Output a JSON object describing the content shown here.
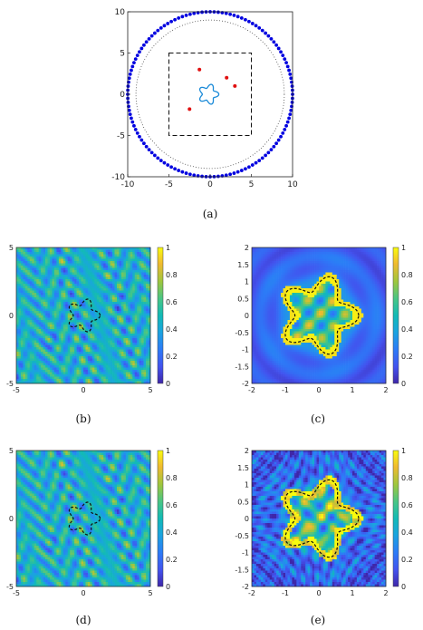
{
  "captions": [
    "(a)",
    "(b)",
    "(c)",
    "(d)",
    "(e)"
  ],
  "chart_data": [
    {
      "type": "scatter",
      "panel": "a",
      "xlim": [
        -10,
        10
      ],
      "ylim": [
        -10,
        10
      ],
      "xticks": [
        "-10",
        "-5",
        "0",
        "5",
        "10"
      ],
      "yticks": [
        "10",
        "5",
        "0",
        "-5",
        "-10"
      ],
      "grid": false,
      "circle_points": {
        "radius": 10,
        "count": 128,
        "color": "#0000e0"
      },
      "dotted_circle": {
        "radius": 9
      },
      "dashed_square": {
        "half_width": 5
      },
      "red_points": [
        {
          "x": -1.3,
          "y": 3.0
        },
        {
          "x": 2.0,
          "y": 2.0
        },
        {
          "x": 3.0,
          "y": 1.0
        },
        {
          "x": -2.5,
          "y": -1.8
        }
      ],
      "star_curve": {
        "center": [
          -0.2,
          0.0
        ],
        "base_radius": 1.0,
        "amplitude": 0.25,
        "petals": 5,
        "color": "#1a8ad8"
      }
    },
    {
      "type": "heatmap",
      "panel": "b",
      "xlim": [
        -5,
        5
      ],
      "ylim": [
        -5,
        5
      ],
      "xticks": [
        "-5",
        "0",
        "5"
      ],
      "yticks": [
        "5",
        "0",
        "-5"
      ],
      "colorbar_ticks": [
        "1",
        "0.8",
        "0.6",
        "0.4",
        "0.2",
        "0"
      ],
      "colorbar_range": [
        0,
        1
      ]
    },
    {
      "type": "heatmap",
      "panel": "c",
      "xlim": [
        -2,
        2
      ],
      "ylim": [
        -2,
        2
      ],
      "xticks": [
        "-2",
        "-1",
        "0",
        "1",
        "2"
      ],
      "yticks": [
        "2",
        "1.5",
        "1",
        "0.5",
        "0",
        "-0.5",
        "-1",
        "-1.5",
        "-2"
      ],
      "colorbar_ticks": [
        "1",
        "0.8",
        "0.6",
        "0.4",
        "0.2",
        "0"
      ],
      "colorbar_range": [
        0,
        1
      ]
    },
    {
      "type": "heatmap",
      "panel": "d",
      "xlim": [
        -5,
        5
      ],
      "ylim": [
        -5,
        5
      ],
      "xticks": [
        "-5",
        "0",
        "5"
      ],
      "yticks": [
        "5",
        "0",
        "-5"
      ],
      "colorbar_ticks": [
        "1",
        "0.8",
        "0.6",
        "0.4",
        "0.2",
        "0"
      ],
      "colorbar_range": [
        0,
        1
      ]
    },
    {
      "type": "heatmap",
      "panel": "e",
      "xlim": [
        -2,
        2
      ],
      "ylim": [
        -2,
        2
      ],
      "xticks": [
        "-2",
        "-1",
        "0",
        "1",
        "2"
      ],
      "yticks": [
        "2",
        "1.5",
        "1",
        "0.5",
        "0",
        "-0.5",
        "-1",
        "-1.5",
        "-2"
      ],
      "colorbar_ticks": [
        "1",
        "0.8",
        "0.6",
        "0.4",
        "0.2",
        "0"
      ],
      "colorbar_range": [
        0,
        1
      ]
    }
  ]
}
